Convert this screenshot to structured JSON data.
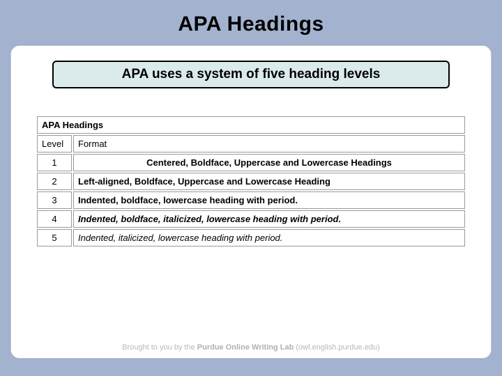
{
  "colors": {
    "page_bg": "#a3b3cf",
    "panel_bg": "#ffffff",
    "panel_border": "#9aa7bf",
    "subtitle_bg": "#dbeaea",
    "subtitle_border": "#000000",
    "table_border": "#9a9a9a",
    "footer_text": "#b8b8b8"
  },
  "title": "APA Headings",
  "subtitle": "APA uses a system of five heading levels",
  "table": {
    "caption": "APA Headings",
    "columns": [
      "Level",
      "Format"
    ],
    "rows": [
      {
        "level": "1",
        "format": "Centered, Boldface, Uppercase and Lowercase Headings",
        "style": "fmt-1"
      },
      {
        "level": "2",
        "format": "Left-aligned, Boldface, Uppercase and Lowercase Heading",
        "style": "fmt-2"
      },
      {
        "level": "3",
        "format": "Indented, boldface, lowercase heading with period.",
        "style": "fmt-3"
      },
      {
        "level": "4",
        "format": "Indented, boldface, italicized, lowercase heading with period.",
        "style": "fmt-4"
      },
      {
        "level": "5",
        "format": "Indented, italicized, lowercase heading with period.",
        "style": "fmt-5"
      }
    ]
  },
  "footer": {
    "prefix": "Brought to you by the ",
    "strong": "Purdue Online Writing Lab",
    "suffix": " (owl.english.purdue.edu)"
  }
}
